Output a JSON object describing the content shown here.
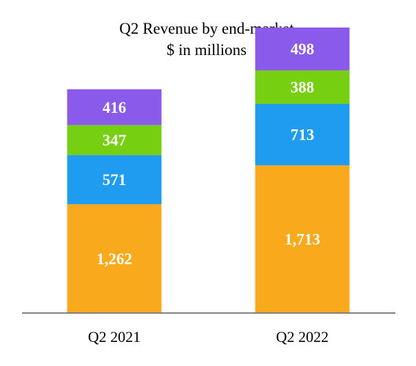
{
  "chart_data": {
    "type": "bar",
    "stacked": true,
    "title": "Q2 Revenue by end-market",
    "subtitle": "$ in millions",
    "xlabel": "",
    "ylabel": "",
    "grid": false,
    "ylim": [
      0,
      3312
    ],
    "categories": [
      "Q2 2021",
      "Q2 2022"
    ],
    "series": [
      {
        "values": [
          1262,
          1713
        ],
        "labels": [
          "1,262",
          "1,713"
        ],
        "color": "#F8A91C"
      },
      {
        "values": [
          571,
          713
        ],
        "labels": [
          "571",
          "713"
        ],
        "color": "#1F9BF0"
      },
      {
        "values": [
          347,
          388
        ],
        "labels": [
          "347",
          "388"
        ],
        "color": "#76CF10"
      },
      {
        "values": [
          416,
          498
        ],
        "labels": [
          "416",
          "498"
        ],
        "color": "#8A5AEB"
      }
    ],
    "axis_color": "#7F7F7F"
  }
}
